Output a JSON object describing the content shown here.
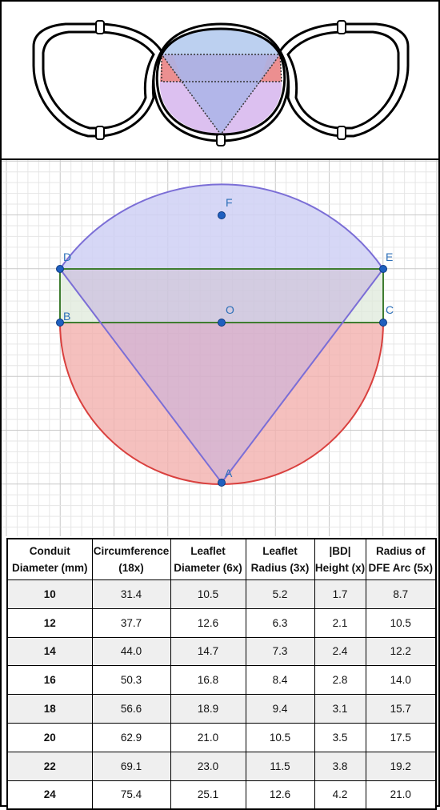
{
  "colors": {
    "blue_fill": "#b9c8f0",
    "purple_fill": "#d9b8ee",
    "red_fill": "#f4aaa8",
    "green_fill": "#e6f0df",
    "green_stroke": "#3f7d31",
    "purple_stroke": "#7b6ed6",
    "red_stroke": "#d9403e",
    "point": "#1f5fbf"
  },
  "points": [
    {
      "name": "F",
      "label": "F"
    },
    {
      "name": "D",
      "label": "D"
    },
    {
      "name": "E",
      "label": "E"
    },
    {
      "name": "O",
      "label": "O"
    },
    {
      "name": "B",
      "label": "B"
    },
    {
      "name": "C",
      "label": "C"
    },
    {
      "name": "A",
      "label": "A"
    }
  ],
  "table": {
    "headers": [
      [
        "Conduit",
        "Diameter (mm)"
      ],
      [
        "Circumference",
        "(18x)"
      ],
      [
        "Leaflet",
        "Diameter (6x)"
      ],
      [
        "Leaflet",
        "Radius (3x)"
      ],
      [
        "|BD|",
        "Height (x)"
      ],
      [
        "Radius of",
        "DFE Arc (5x)"
      ]
    ],
    "rows": [
      [
        "10",
        "31.4",
        "10.5",
        "5.2",
        "1.7",
        "8.7"
      ],
      [
        "12",
        "37.7",
        "12.6",
        "6.3",
        "2.1",
        "10.5"
      ],
      [
        "14",
        "44.0",
        "14.7",
        "7.3",
        "2.4",
        "12.2"
      ],
      [
        "16",
        "50.3",
        "16.8",
        "8.4",
        "2.8",
        "14.0"
      ],
      [
        "18",
        "56.6",
        "18.9",
        "9.4",
        "3.1",
        "15.7"
      ],
      [
        "20",
        "62.9",
        "21.0",
        "10.5",
        "3.5",
        "17.5"
      ],
      [
        "22",
        "69.1",
        "23.0",
        "11.5",
        "3.8",
        "19.2"
      ],
      [
        "24",
        "75.4",
        "25.1",
        "12.6",
        "4.2",
        "21.0"
      ]
    ]
  }
}
